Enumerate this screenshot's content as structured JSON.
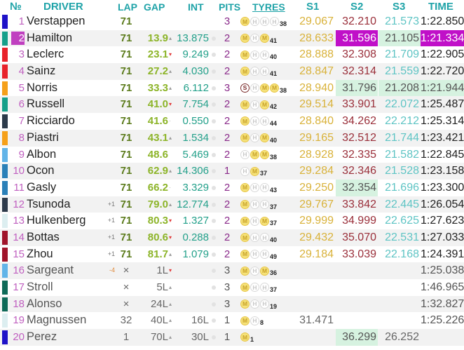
{
  "header": {
    "num": "№",
    "driver": "DRIVER",
    "lap": "LAP",
    "gap": "GAP",
    "int": "INT",
    "pits": "PITS",
    "tyres": "TYRES",
    "s1": "S1",
    "s2": "S2",
    "s3": "S3",
    "time": "TIME"
  },
  "colors": {
    "header_text": "#1fa3a8",
    "position_number": "#c060c0",
    "lap_text": "#5a7a1a",
    "gap_text": "#8cb428",
    "int_text": "#23a08a",
    "pits_text": "#8a2a8a",
    "s1_text": "#d9b23a",
    "s2_text": "#9a2f3a",
    "s3_text": "#5ec4c4",
    "personal_best_bg": "#d6f2e0",
    "overall_best_bg": "#c010c8"
  },
  "rows": [
    {
      "pos": "1",
      "team_color": "#1e12c8",
      "driver": "Verstappen",
      "pos_change": "",
      "lap": "71",
      "gap": "",
      "gap_trend": "",
      "int": "",
      "pits": "3",
      "tyres": [
        "M",
        "H",
        "H",
        "H"
      ],
      "tyre_laps": "38",
      "s1": "29.067",
      "s2": "32.210",
      "s3": "21.573",
      "time": "1:22.850",
      "s2_hl": "",
      "s3_hl": "",
      "time_hl": "",
      "pos_hl": false
    },
    {
      "pos": "2",
      "team_color": "#16a08a",
      "driver": "Hamilton",
      "pos_change": "",
      "lap": "71",
      "gap": "13.9",
      "gap_trend": "up",
      "int": "13.875",
      "pits": "2",
      "tyres": [
        "M",
        "H",
        "M"
      ],
      "tyre_laps": "41",
      "s1": "28.633",
      "s2": "31.596",
      "s3": "21.105",
      "time": "1:21.334",
      "s2_hl": "purple",
      "s3_hl": "green",
      "time_hl": "purple",
      "pos_hl": true
    },
    {
      "pos": "3",
      "team_color": "#e8222a",
      "driver": "Leclerc",
      "pos_change": "",
      "lap": "71",
      "gap": "23.1",
      "gap_trend": "down",
      "int": "9.249",
      "pits": "2",
      "tyres": [
        "M",
        "H",
        "H"
      ],
      "tyre_laps": "40",
      "s1": "28.888",
      "s2": "32.308",
      "s3": "21.709",
      "time": "1:22.905",
      "s2_hl": "",
      "s3_hl": "",
      "time_hl": "",
      "pos_hl": false
    },
    {
      "pos": "4",
      "team_color": "#e8222a",
      "driver": "Sainz",
      "pos_change": "",
      "lap": "71",
      "gap": "27.2",
      "gap_trend": "up",
      "int": "4.030",
      "pits": "2",
      "tyres": [
        "M",
        "H",
        "H"
      ],
      "tyre_laps": "41",
      "s1": "28.847",
      "s2": "32.314",
      "s3": "21.559",
      "time": "1:22.720",
      "s2_hl": "",
      "s3_hl": "",
      "time_hl": "",
      "pos_hl": false
    },
    {
      "pos": "5",
      "team_color": "#f5a01a",
      "driver": "Norris",
      "pos_change": "",
      "lap": "71",
      "gap": "33.3",
      "gap_trend": "up",
      "int": "6.112",
      "pits": "3",
      "tyres": [
        "S",
        "H",
        "M",
        "M"
      ],
      "tyre_laps": "38",
      "s1": "28.940",
      "s2": "31.796",
      "s3": "21.208",
      "time": "1:21.944",
      "s2_hl": "green",
      "s3_hl": "green",
      "time_hl": "green",
      "pos_hl": false
    },
    {
      "pos": "6",
      "team_color": "#16a08a",
      "driver": "Russell",
      "pos_change": "",
      "lap": "71",
      "gap": "41.0",
      "gap_trend": "down",
      "int": "7.754",
      "pits": "2",
      "tyres": [
        "M",
        "H",
        "M"
      ],
      "tyre_laps": "42",
      "s1": "29.514",
      "s2": "33.901",
      "s3": "22.072",
      "time": "1:25.487",
      "s2_hl": "",
      "s3_hl": "",
      "time_hl": "",
      "pos_hl": false
    },
    {
      "pos": "7",
      "team_color": "#2c3a4a",
      "driver": "Ricciardo",
      "pos_change": "",
      "lap": "71",
      "gap": "41.6",
      "gap_trend": "flat",
      "int": "0.550",
      "pits": "2",
      "tyres": [
        "M",
        "H",
        "H"
      ],
      "tyre_laps": "44",
      "s1": "28.840",
      "s2": "34.262",
      "s3": "22.212",
      "time": "1:25.314",
      "s2_hl": "",
      "s3_hl": "",
      "time_hl": "",
      "pos_hl": false
    },
    {
      "pos": "8",
      "team_color": "#f5a01a",
      "driver": "Piastri",
      "pos_change": "",
      "lap": "71",
      "gap": "43.1",
      "gap_trend": "up",
      "int": "1.534",
      "pits": "2",
      "tyres": [
        "M",
        "H",
        "M"
      ],
      "tyre_laps": "40",
      "s1": "29.165",
      "s2": "32.512",
      "s3": "21.744",
      "time": "1:23.421",
      "s2_hl": "",
      "s3_hl": "",
      "time_hl": "",
      "pos_hl": false
    },
    {
      "pos": "9",
      "team_color": "#62b4e8",
      "driver": "Albon",
      "pos_change": "",
      "lap": "71",
      "gap": "48.6",
      "gap_trend": "",
      "int": "5.469",
      "pits": "2",
      "tyres": [
        "H",
        "M",
        "M"
      ],
      "tyre_laps": "38",
      "s1": "28.928",
      "s2": "32.335",
      "s3": "21.582",
      "time": "1:22.845",
      "s2_hl": "",
      "s3_hl": "",
      "time_hl": "",
      "pos_hl": false
    },
    {
      "pos": "10",
      "team_color": "#2a80b8",
      "driver": "Ocon",
      "pos_change": "",
      "lap": "71",
      "gap": "62.9",
      "gap_trend": "up",
      "int": "14.306",
      "pits": "1",
      "tyres": [
        "H",
        "M"
      ],
      "tyre_laps": "37",
      "s1": "29.284",
      "s2": "32.346",
      "s3": "21.528",
      "time": "1:23.158",
      "s2_hl": "",
      "s3_hl": "",
      "time_hl": "",
      "pos_hl": false
    },
    {
      "pos": "11",
      "team_color": "#2a80b8",
      "driver": "Gasly",
      "pos_change": "",
      "lap": "71",
      "gap": "66.2",
      "gap_trend": "flat",
      "int": "3.329",
      "pits": "2",
      "tyres": [
        "M",
        "H",
        "H"
      ],
      "tyre_laps": "43",
      "s1": "29.250",
      "s2": "32.354",
      "s3": "21.696",
      "time": "1:23.300",
      "s2_hl": "green",
      "s3_hl": "",
      "time_hl": "",
      "pos_hl": false
    },
    {
      "pos": "12",
      "team_color": "#2c3a4a",
      "driver": "Tsunoda",
      "pos_change": "+1",
      "lap": "71",
      "gap": "79.0",
      "gap_trend": "up",
      "int": "12.774",
      "pits": "2",
      "tyres": [
        "M",
        "H",
        "H"
      ],
      "tyre_laps": "37",
      "s1": "29.767",
      "s2": "33.842",
      "s3": "22.445",
      "time": "1:26.054",
      "s2_hl": "",
      "s3_hl": "",
      "time_hl": "",
      "pos_hl": false
    },
    {
      "pos": "13",
      "team_color": "#dceef0",
      "driver": "Hulkenberg",
      "pos_change": "+1",
      "lap": "71",
      "gap": "80.3",
      "gap_trend": "down",
      "int": "1.327",
      "pits": "2",
      "tyres": [
        "M",
        "H",
        "M"
      ],
      "tyre_laps": "37",
      "s1": "29.999",
      "s2": "34.999",
      "s3": "22.625",
      "time": "1:27.623",
      "s2_hl": "",
      "s3_hl": "",
      "time_hl": "",
      "pos_hl": false
    },
    {
      "pos": "14",
      "team_color": "#a0142a",
      "driver": "Bottas",
      "pos_change": "+1",
      "lap": "71",
      "gap": "80.6",
      "gap_trend": "down",
      "int": "0.288",
      "pits": "2",
      "tyres": [
        "M",
        "H",
        "H"
      ],
      "tyre_laps": "40",
      "s1": "29.432",
      "s2": "35.070",
      "s3": "22.531",
      "time": "1:27.033",
      "s2_hl": "",
      "s3_hl": "",
      "time_hl": "",
      "pos_hl": false
    },
    {
      "pos": "15",
      "team_color": "#a0142a",
      "driver": "Zhou",
      "pos_change": "+1",
      "lap": "71",
      "gap": "81.7",
      "gap_trend": "up",
      "int": "1.079",
      "pits": "2",
      "tyres": [
        "M",
        "H",
        "H"
      ],
      "tyre_laps": "49",
      "s1": "29.184",
      "s2": "33.039",
      "s3": "22.168",
      "time": "1:24.391",
      "s2_hl": "",
      "s3_hl": "",
      "time_hl": "",
      "pos_hl": false
    },
    {
      "pos": "16",
      "team_color": "#62b4e8",
      "driver": "Sargeant",
      "pos_change": "-4",
      "lap": "×",
      "gap": "1L",
      "gap_trend": "down",
      "int": "",
      "pits": "3",
      "tyres": [
        "M",
        "H",
        "M"
      ],
      "tyre_laps": "36",
      "s1": "",
      "s2": "",
      "s3": "",
      "time": "1:25.038",
      "s2_hl": "",
      "s3_hl": "",
      "time_hl": "",
      "pos_hl": false,
      "retired": true
    },
    {
      "pos": "17",
      "team_color": "#0e6a58",
      "driver": "Stroll",
      "pos_change": "",
      "lap": "×",
      "gap": "5L",
      "gap_trend": "up",
      "int": "",
      "pits": "3",
      "tyres": [
        "M",
        "H",
        "H"
      ],
      "tyre_laps": "37",
      "s1": "",
      "s2": "",
      "s3": "",
      "time": "1:46.965",
      "s2_hl": "",
      "s3_hl": "",
      "time_hl": "",
      "pos_hl": false,
      "retired": true
    },
    {
      "pos": "18",
      "team_color": "#0e6a58",
      "driver": "Alonso",
      "pos_change": "",
      "lap": "×",
      "gap": "24L",
      "gap_trend": "up",
      "int": "",
      "pits": "3",
      "tyres": [
        "M",
        "H",
        "H"
      ],
      "tyre_laps": "19",
      "s1": "",
      "s2": "",
      "s3": "",
      "time": "1:32.827",
      "s2_hl": "",
      "s3_hl": "",
      "time_hl": "",
      "pos_hl": false,
      "retired": true
    },
    {
      "pos": "19",
      "team_color": "#dceef0",
      "driver": "Magnussen",
      "pos_change": "",
      "lap": "32",
      "gap": "40L",
      "gap_trend": "up",
      "int": "16L",
      "pits": "1",
      "tyres": [
        "M",
        "H"
      ],
      "tyre_laps": "8",
      "s1": "31.471",
      "s2": "",
      "s3": "",
      "time": "1:25.226",
      "s2_hl": "",
      "s3_hl": "",
      "time_hl": "",
      "pos_hl": false,
      "retired": true
    },
    {
      "pos": "20",
      "team_color": "#1e12c8",
      "driver": "Perez",
      "pos_change": "",
      "lap": "1",
      "gap": "70L",
      "gap_trend": "up",
      "int": "30L",
      "pits": "1",
      "tyres": [
        "M"
      ],
      "tyre_laps": "1",
      "s1": "",
      "s2": "36.299",
      "s3": "26.252",
      "time": "",
      "s2_hl": "green",
      "s3_hl": "",
      "time_hl": "",
      "pos_hl": false,
      "retired": true
    }
  ]
}
